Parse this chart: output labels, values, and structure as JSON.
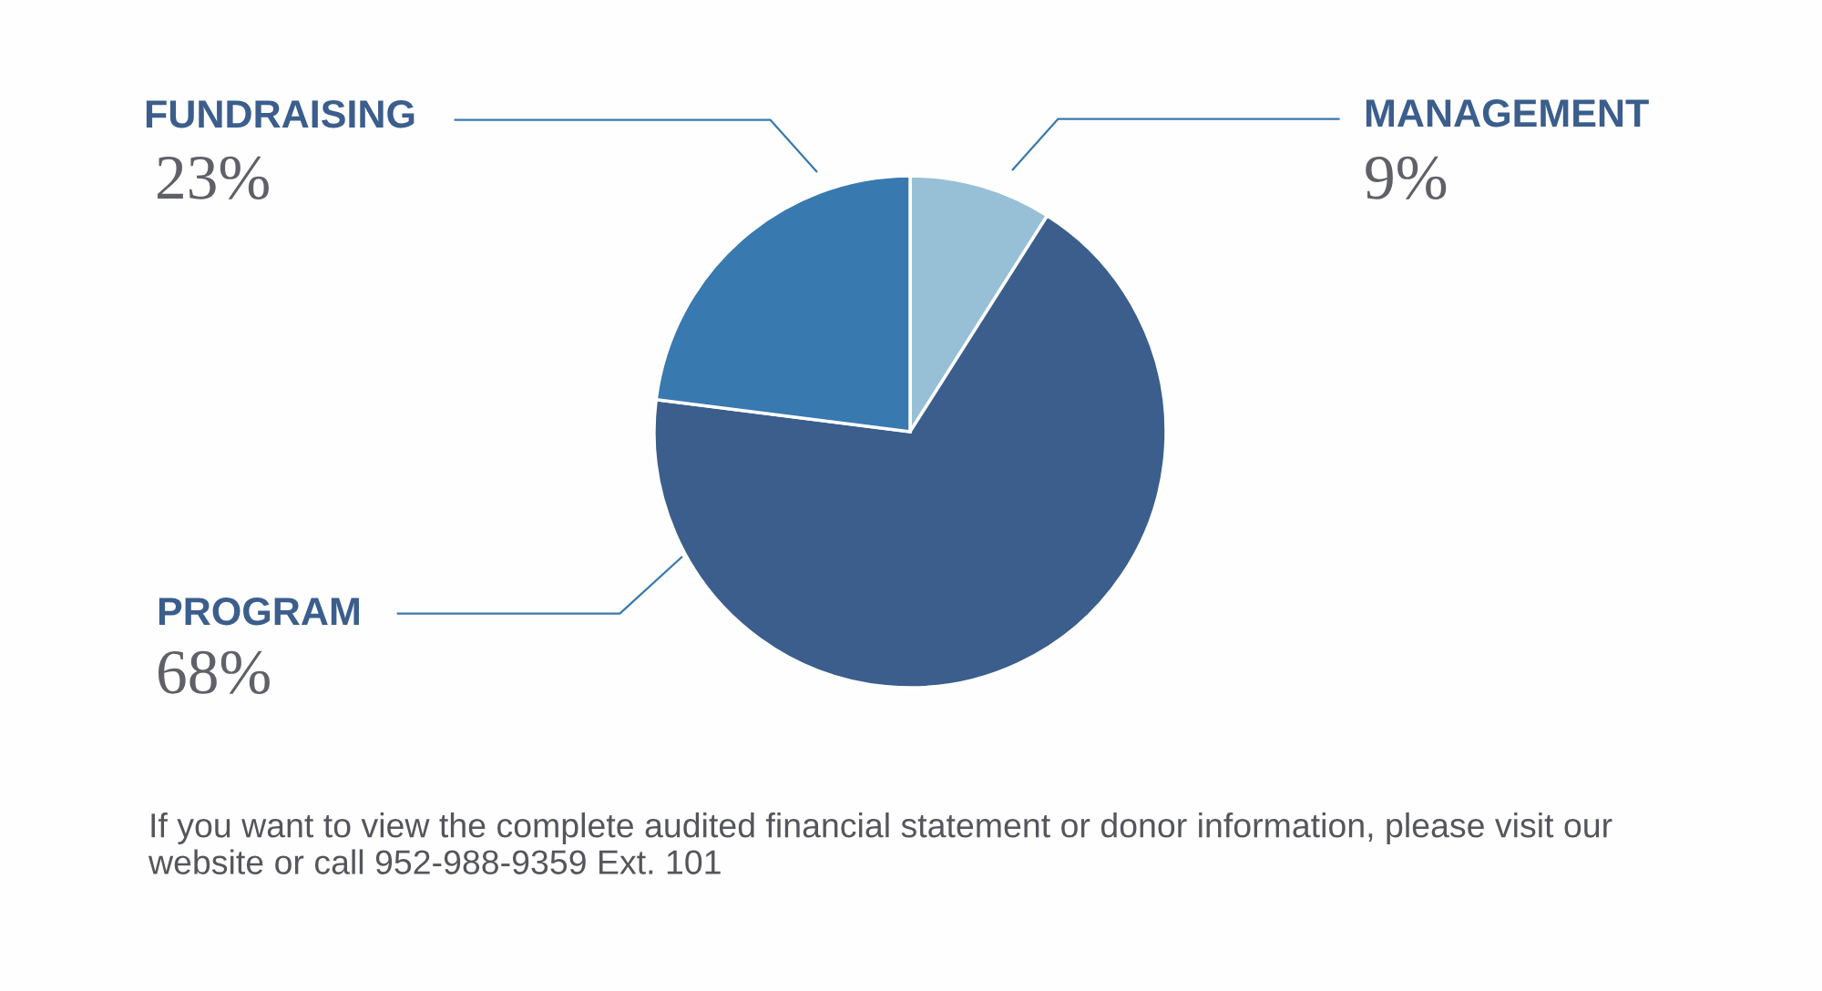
{
  "chart_data": {
    "type": "pie",
    "categories": [
      "MANAGEMENT",
      "PROGRAM",
      "FUNDRAISING"
    ],
    "values": [
      9,
      68,
      23
    ],
    "colors": [
      "#97c0d7",
      "#3b5e8c",
      "#3879b0"
    ],
    "value_labels": [
      "9%",
      "68%",
      "23%"
    ],
    "annotations": [
      "If you want to view the complete audited financial statement or donor information, please visit our\nwebsite or call 952-988-9359 Ext. 101"
    ]
  }
}
